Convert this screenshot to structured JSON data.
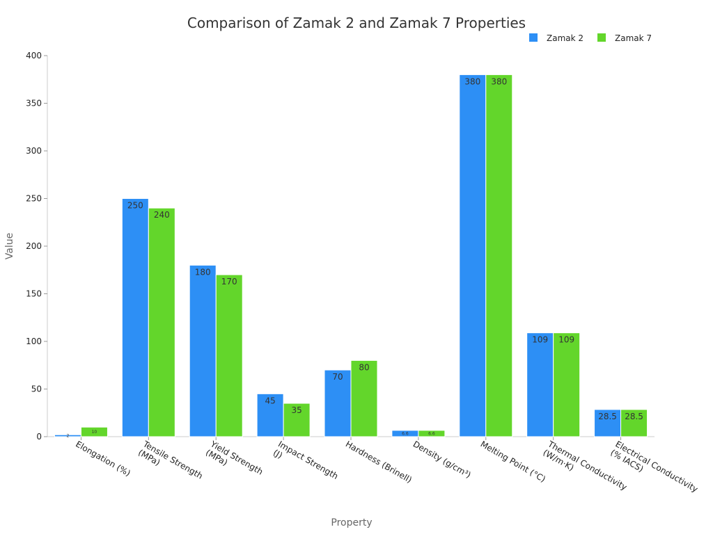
{
  "chart_data": {
    "type": "bar",
    "title": "Comparison of Zamak 2 and Zamak 7 Properties",
    "x_label": "Property",
    "y_label": "Value",
    "categories": [
      "Elongation (%)",
      "Tensile Strength (MPa)",
      "Yield Strength (MPa)",
      "Impact Strength (J)",
      "Hardness (Brinell)",
      "Density (g/cm³)",
      "Melting Point (°C)",
      "Thermal Conductivity (W/m·K)",
      "Electrical Conductivity (% IACS)"
    ],
    "series": [
      {
        "name": "Zamak 2",
        "color": "#2d8ff5",
        "values": [
          2,
          250,
          180,
          45,
          70,
          6.6,
          380,
          109,
          28.5
        ]
      },
      {
        "name": "Zamak 7",
        "color": "#63d62b",
        "values": [
          10,
          240,
          170,
          35,
          80,
          6.6,
          380,
          109,
          28.5
        ]
      }
    ],
    "ylim": [
      0,
      400
    ],
    "yticks": [
      0,
      50,
      100,
      150,
      200,
      250,
      300,
      350,
      400
    ],
    "legend": "top-right"
  }
}
